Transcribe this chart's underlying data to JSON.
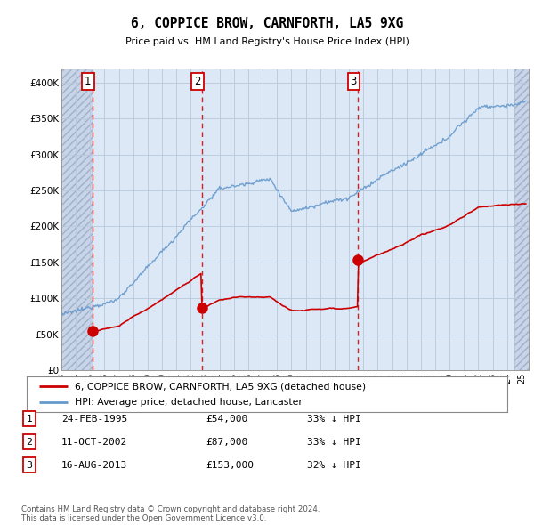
{
  "title": "6, COPPICE BROW, CARNFORTH, LA5 9XG",
  "subtitle": "Price paid vs. HM Land Registry's House Price Index (HPI)",
  "background_color": "#dce8f5",
  "hatch_region_color": "#c8d4e8",
  "grid_color": "#b8c8dc",
  "sale_years": [
    1995.15,
    2002.78,
    2013.62
  ],
  "sale_prices": [
    54000,
    87000,
    153000
  ],
  "sale_labels": [
    "1",
    "2",
    "3"
  ],
  "legend_entries": [
    "6, COPPICE BROW, CARNFORTH, LA5 9XG (detached house)",
    "HPI: Average price, detached house, Lancaster"
  ],
  "table_rows": [
    [
      "1",
      "24-FEB-1995",
      "£54,000",
      "33% ↓ HPI"
    ],
    [
      "2",
      "11-OCT-2002",
      "£87,000",
      "33% ↓ HPI"
    ],
    [
      "3",
      "16-AUG-2013",
      "£153,000",
      "32% ↓ HPI"
    ]
  ],
  "footer": "Contains HM Land Registry data © Crown copyright and database right 2024.\nThis data is licensed under the Open Government Licence v3.0.",
  "ylim": [
    0,
    420000
  ],
  "yticks": [
    0,
    50000,
    100000,
    150000,
    200000,
    250000,
    300000,
    350000,
    400000
  ],
  "ytick_labels": [
    "£0",
    "£50K",
    "£100K",
    "£150K",
    "£200K",
    "£250K",
    "£300K",
    "£350K",
    "£400K"
  ],
  "xlim_start": 1993.0,
  "xlim_end": 2025.5,
  "hpi_color": "#6699cc",
  "price_color": "#cc0000",
  "dashed_line_color": "#cc0000",
  "right_hatch_start": 2024.5
}
